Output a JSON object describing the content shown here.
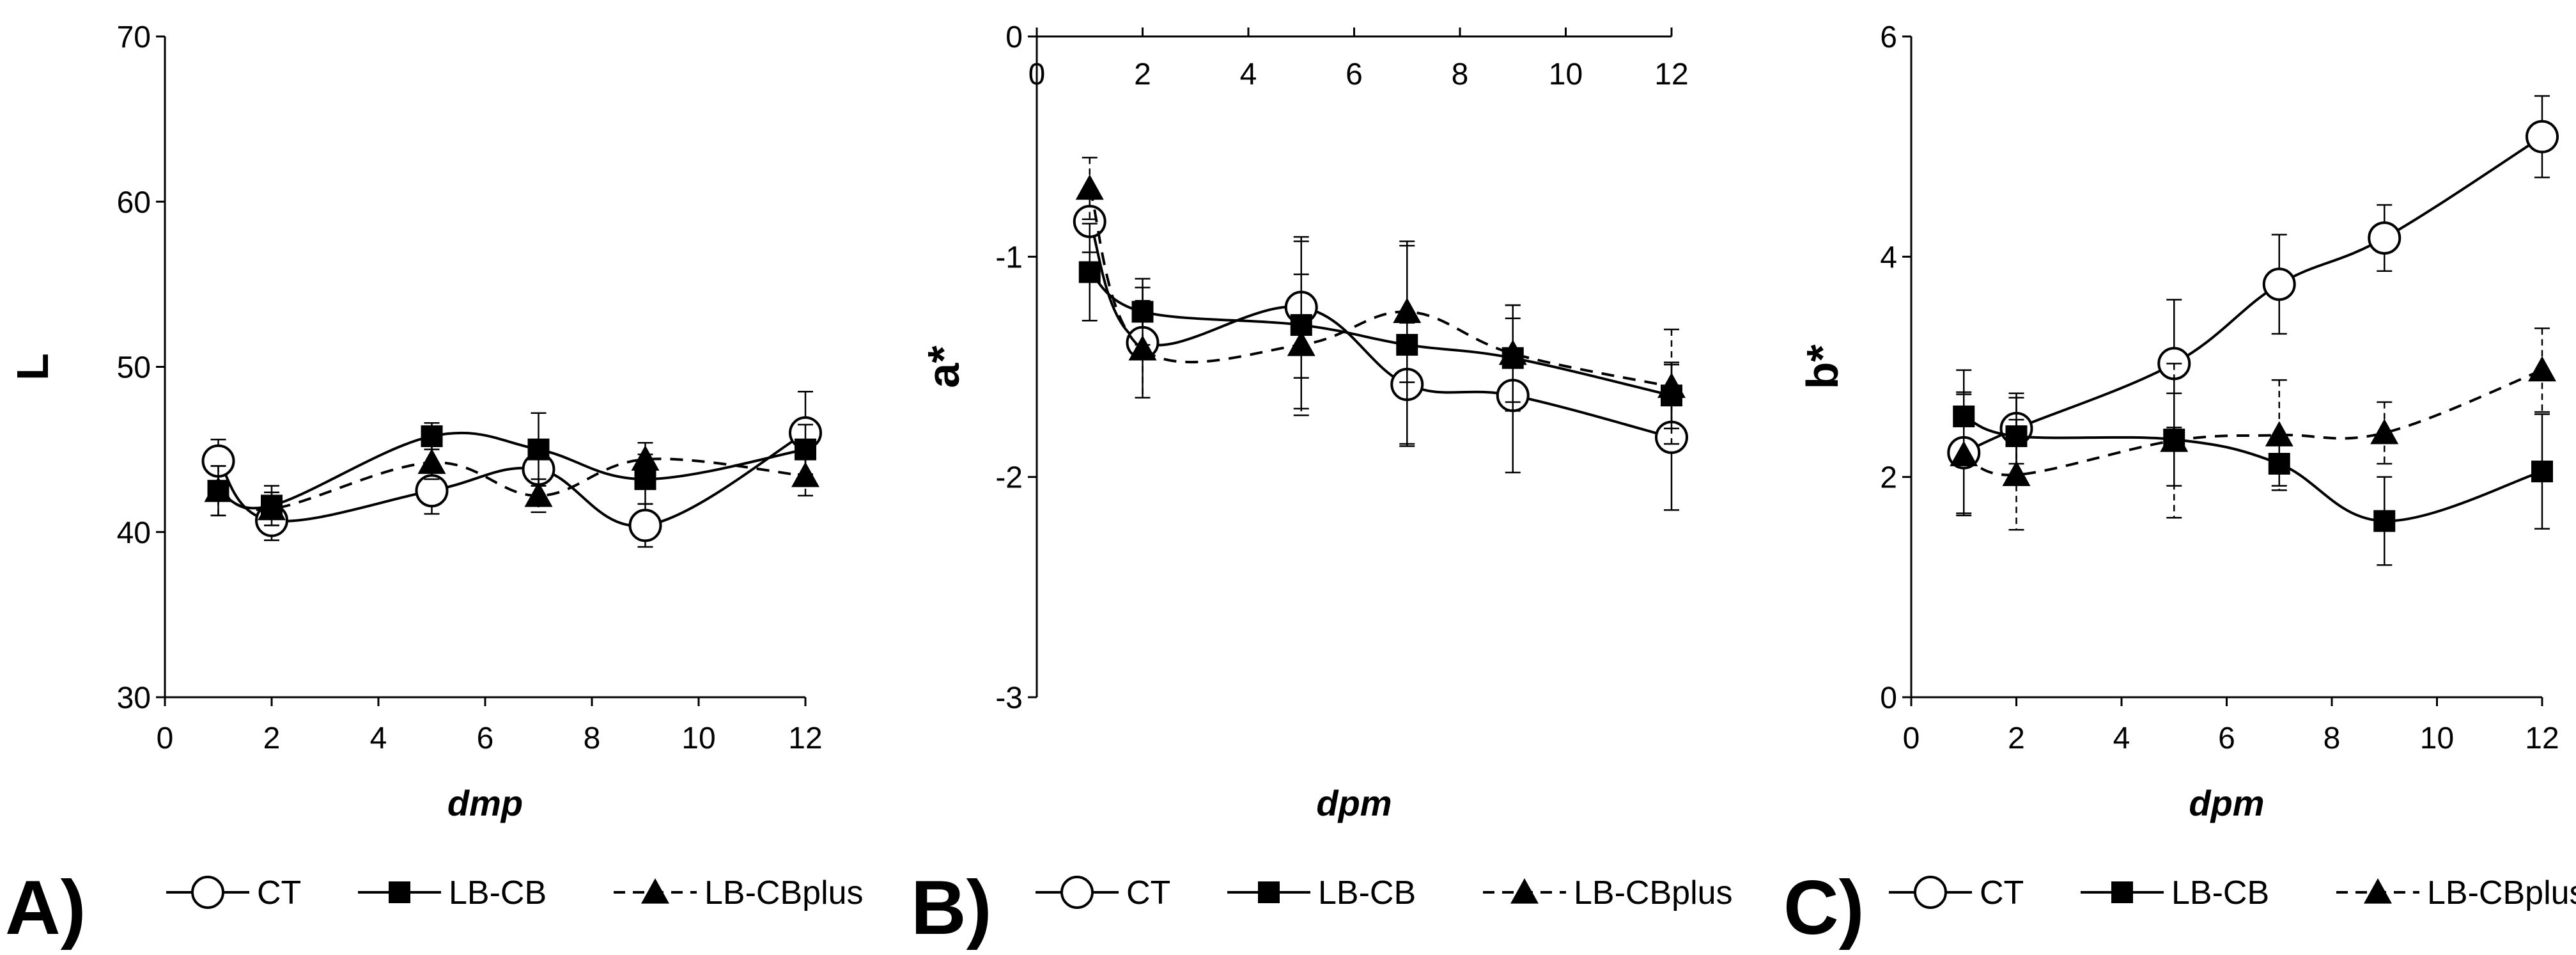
{
  "chart_data": [
    {
      "type": "line",
      "panel_label": "A)",
      "ylabel": "L",
      "xlabel": "dmp",
      "xlim": [
        0,
        12
      ],
      "ylim": [
        30,
        70
      ],
      "xticks": [
        0,
        2,
        4,
        6,
        8,
        10,
        12
      ],
      "yticks": [
        30,
        40,
        50,
        60,
        70
      ],
      "x_axis_at": "bottom",
      "legend": [
        "CT",
        "LB-CB",
        "LB-CBplus"
      ],
      "series": [
        {
          "name": "CT",
          "marker": "open-circle",
          "line": "solid",
          "x": [
            1,
            2,
            5,
            7,
            9,
            12
          ],
          "y": [
            44.3,
            40.7,
            42.5,
            43.8,
            40.4,
            46.0
          ],
          "err": [
            1.3,
            1.2,
            1.4,
            1.0,
            1.3,
            2.5
          ]
        },
        {
          "name": "LB-CB",
          "marker": "filled-square",
          "line": "solid",
          "x": [
            1,
            2,
            5,
            7,
            9,
            12
          ],
          "y": [
            42.5,
            41.6,
            45.8,
            45.0,
            43.2,
            45.0
          ],
          "err": [
            1.5,
            1.2,
            0.8,
            2.2,
            1.5,
            1.5
          ]
        },
        {
          "name": "LB-CBplus",
          "marker": "filled-triangle",
          "line": "dashed",
          "x": [
            1,
            2,
            5,
            7,
            9,
            12
          ],
          "y": [
            42.5,
            41.4,
            44.2,
            42.2,
            44.4,
            43.4
          ],
          "err": [
            1.5,
            1.0,
            1.0,
            1.0,
            1.0,
            1.2
          ]
        }
      ]
    },
    {
      "type": "line",
      "panel_label": "B)",
      "ylabel": "a*",
      "xlabel": "dpm",
      "xlim": [
        0,
        12
      ],
      "ylim": [
        -3,
        0
      ],
      "xticks": [
        0,
        2,
        4,
        6,
        8,
        10,
        12
      ],
      "yticks": [
        -3,
        -2,
        -1,
        0
      ],
      "x_axis_at": "top",
      "legend": [
        "CT",
        "LB-CB",
        "LB-CBplus"
      ],
      "series": [
        {
          "name": "CT",
          "marker": "open-circle",
          "line": "solid",
          "x": [
            1,
            2,
            5,
            7,
            9,
            12
          ],
          "y": [
            -0.84,
            -1.39,
            -1.23,
            -1.58,
            -1.63,
            -1.82
          ],
          "err": [
            0.14,
            0.25,
            0.32,
            0.28,
            0.35,
            0.33
          ]
        },
        {
          "name": "LB-CB",
          "marker": "filled-square",
          "line": "solid",
          "x": [
            1,
            2,
            5,
            7,
            9,
            12
          ],
          "y": [
            -1.07,
            -1.25,
            -1.31,
            -1.4,
            -1.46,
            -1.63
          ],
          "err": [
            0.22,
            0.15,
            0.38,
            0.45,
            0.24,
            0.15
          ]
        },
        {
          "name": "LB-CBplus",
          "marker": "filled-triangle",
          "line": "dashed",
          "x": [
            1,
            2,
            5,
            7,
            9,
            12
          ],
          "y": [
            -0.69,
            -1.42,
            -1.4,
            -1.25,
            -1.44,
            -1.59
          ],
          "err": [
            0.14,
            0.22,
            0.32,
            0.32,
            0.22,
            0.26
          ]
        }
      ]
    },
    {
      "type": "line",
      "panel_label": "C)",
      "ylabel": "b*",
      "xlabel": "dpm",
      "xlim": [
        0,
        12
      ],
      "ylim": [
        0,
        6
      ],
      "xticks": [
        0,
        2,
        4,
        6,
        8,
        10,
        12
      ],
      "yticks": [
        0,
        2,
        4,
        6
      ],
      "x_axis_at": "bottom",
      "legend": [
        "CT",
        "LB-CB",
        "LB-CBplus"
      ],
      "series": [
        {
          "name": "CT",
          "marker": "open-circle",
          "line": "solid",
          "x": [
            1,
            2,
            5,
            7,
            9,
            12
          ],
          "y": [
            2.22,
            2.44,
            3.03,
            3.75,
            4.17,
            5.09
          ],
          "err": [
            0.55,
            0.32,
            0.58,
            0.45,
            0.3,
            0.37
          ]
        },
        {
          "name": "LB-CB",
          "marker": "filled-square",
          "line": "solid",
          "x": [
            1,
            2,
            5,
            7,
            9,
            12
          ],
          "y": [
            2.55,
            2.37,
            2.34,
            2.12,
            1.6,
            2.05
          ],
          "err": [
            0.42,
            0.35,
            0.42,
            0.2,
            0.4,
            0.52
          ]
        },
        {
          "name": "LB-CBplus",
          "marker": "filled-triangle",
          "line": "dashed",
          "x": [
            1,
            2,
            5,
            7,
            9,
            12
          ],
          "y": [
            2.2,
            2.02,
            2.33,
            2.38,
            2.4,
            2.97
          ],
          "err": [
            0.55,
            0.5,
            0.7,
            0.5,
            0.28,
            0.38
          ]
        }
      ]
    }
  ]
}
